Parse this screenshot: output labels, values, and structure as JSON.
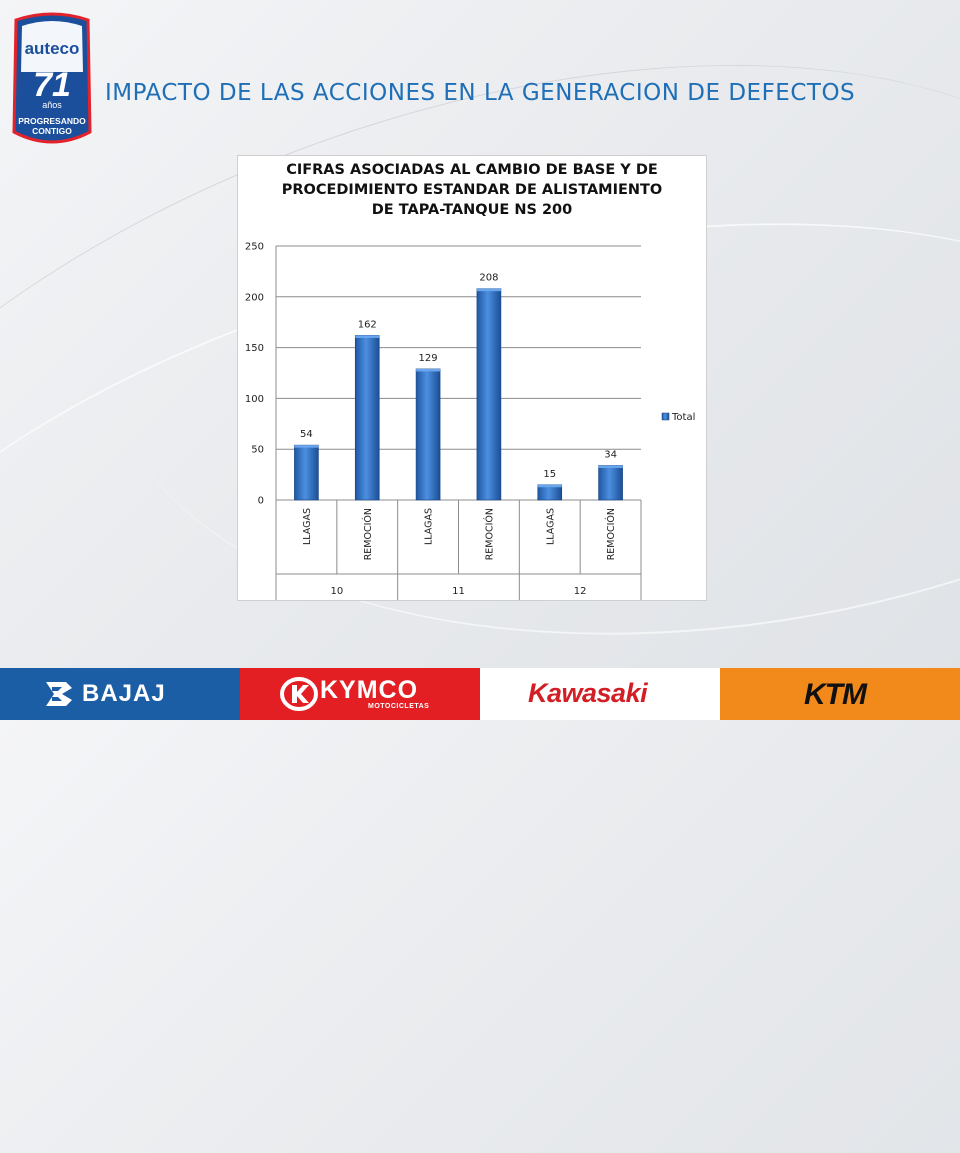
{
  "slide": {
    "title": "IMPACTO DE LAS ACCIONES EN LA GENERACION DE DEFECTOS",
    "logo": {
      "brand": "auteco",
      "number": "71",
      "years": "años",
      "tagline_1": "PROGRESANDO",
      "tagline_2": "CONTIGO",
      "colors": {
        "shield": "#1b4f9c",
        "accent": "#e3232b"
      }
    }
  },
  "chart_data": {
    "type": "bar",
    "title_lines": [
      "CIFRAS ASOCIADAS AL CAMBIO DE BASE Y DE",
      "PROCEDIMIENTO ESTANDAR DE ALISTAMIENTO",
      "DE TAPA-TANQUE NS 200"
    ],
    "categories": [
      "LLAGAS",
      "REMOCIÓN",
      "LLAGAS",
      "REMOCIÓN",
      "LLAGAS",
      "REMOCIÓN"
    ],
    "groups": [
      {
        "label": "10",
        "span": 2
      },
      {
        "label": "11",
        "span": 2
      },
      {
        "label": "12",
        "span": 2
      }
    ],
    "series": [
      {
        "name": "Total",
        "values": [
          54,
          162,
          129,
          208,
          15,
          34
        ],
        "color": "#2f6fc1"
      }
    ],
    "ylim": [
      0,
      250
    ],
    "yticks": [
      0,
      50,
      100,
      150,
      200,
      250
    ],
    "grid": true,
    "legend": "right"
  },
  "footer": {
    "brands": [
      {
        "name": "BAJAJ",
        "bg": "#1c5ea6"
      },
      {
        "name": "KYMCO",
        "sub": "MOTOCICLETAS",
        "bg": "#e41f24"
      },
      {
        "name": "Kawasaki",
        "bg": "#ffffff"
      },
      {
        "name": "KTM",
        "bg": "#f28a1b"
      }
    ]
  }
}
